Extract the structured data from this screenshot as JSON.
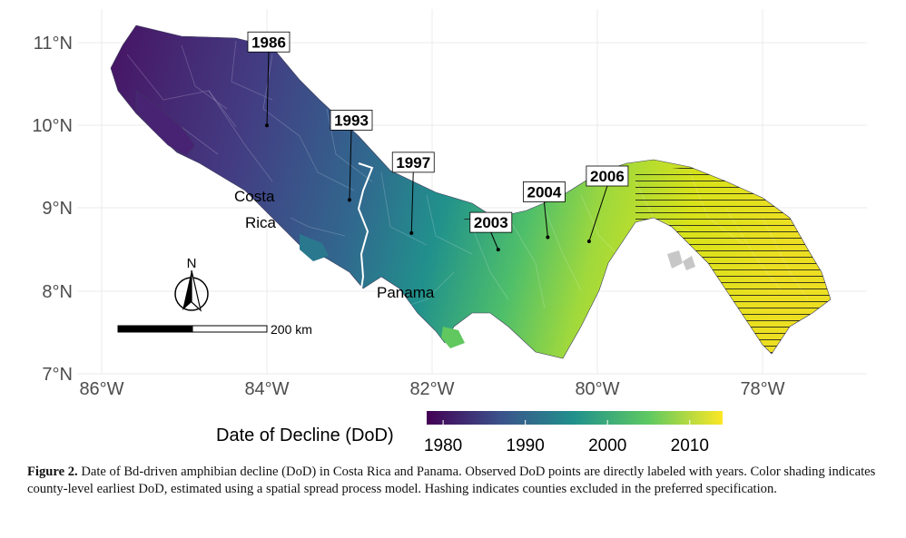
{
  "map": {
    "lat_ticks": [
      "11°N",
      "10°N",
      "9°N",
      "8°N",
      "7°N"
    ],
    "lon_ticks": [
      "86°W",
      "84°W",
      "82°W",
      "80°W",
      "78°W"
    ],
    "country_labels": [
      "Costa",
      "Rica",
      "Panama"
    ],
    "north_arrow_label": "N",
    "scale_bar_label": "200 km",
    "observed_dod_points": [
      {
        "year": "1986",
        "lon": -84.0,
        "lat": 10.0
      },
      {
        "year": "1993",
        "lon": -83.0,
        "lat": 9.1
      },
      {
        "year": "1997",
        "lon": -82.25,
        "lat": 8.7
      },
      {
        "year": "2003",
        "lon": -81.2,
        "lat": 8.5
      },
      {
        "year": "2004",
        "lon": -80.6,
        "lat": 8.65
      },
      {
        "year": "2006",
        "lon": -80.1,
        "lat": 8.6
      }
    ]
  },
  "legend": {
    "title": "Date of Decline (DoD)",
    "ticks": [
      "1980",
      "1990",
      "2000",
      "2010"
    ],
    "range": [
      1978,
      2014
    ],
    "colors": [
      "#440154",
      "#3b528b",
      "#21918c",
      "#5ec962",
      "#fde725"
    ]
  },
  "caption": {
    "label": "Figure 2.",
    "text": " Date of Bd-driven amphibian decline (DoD) in Costa Rica and Panama. Observed DoD points are directly labeled with years. Color shading indicates county-level earliest DoD, estimated using a spatial spread process model. Hashing indicates counties excluded in the preferred specification."
  }
}
